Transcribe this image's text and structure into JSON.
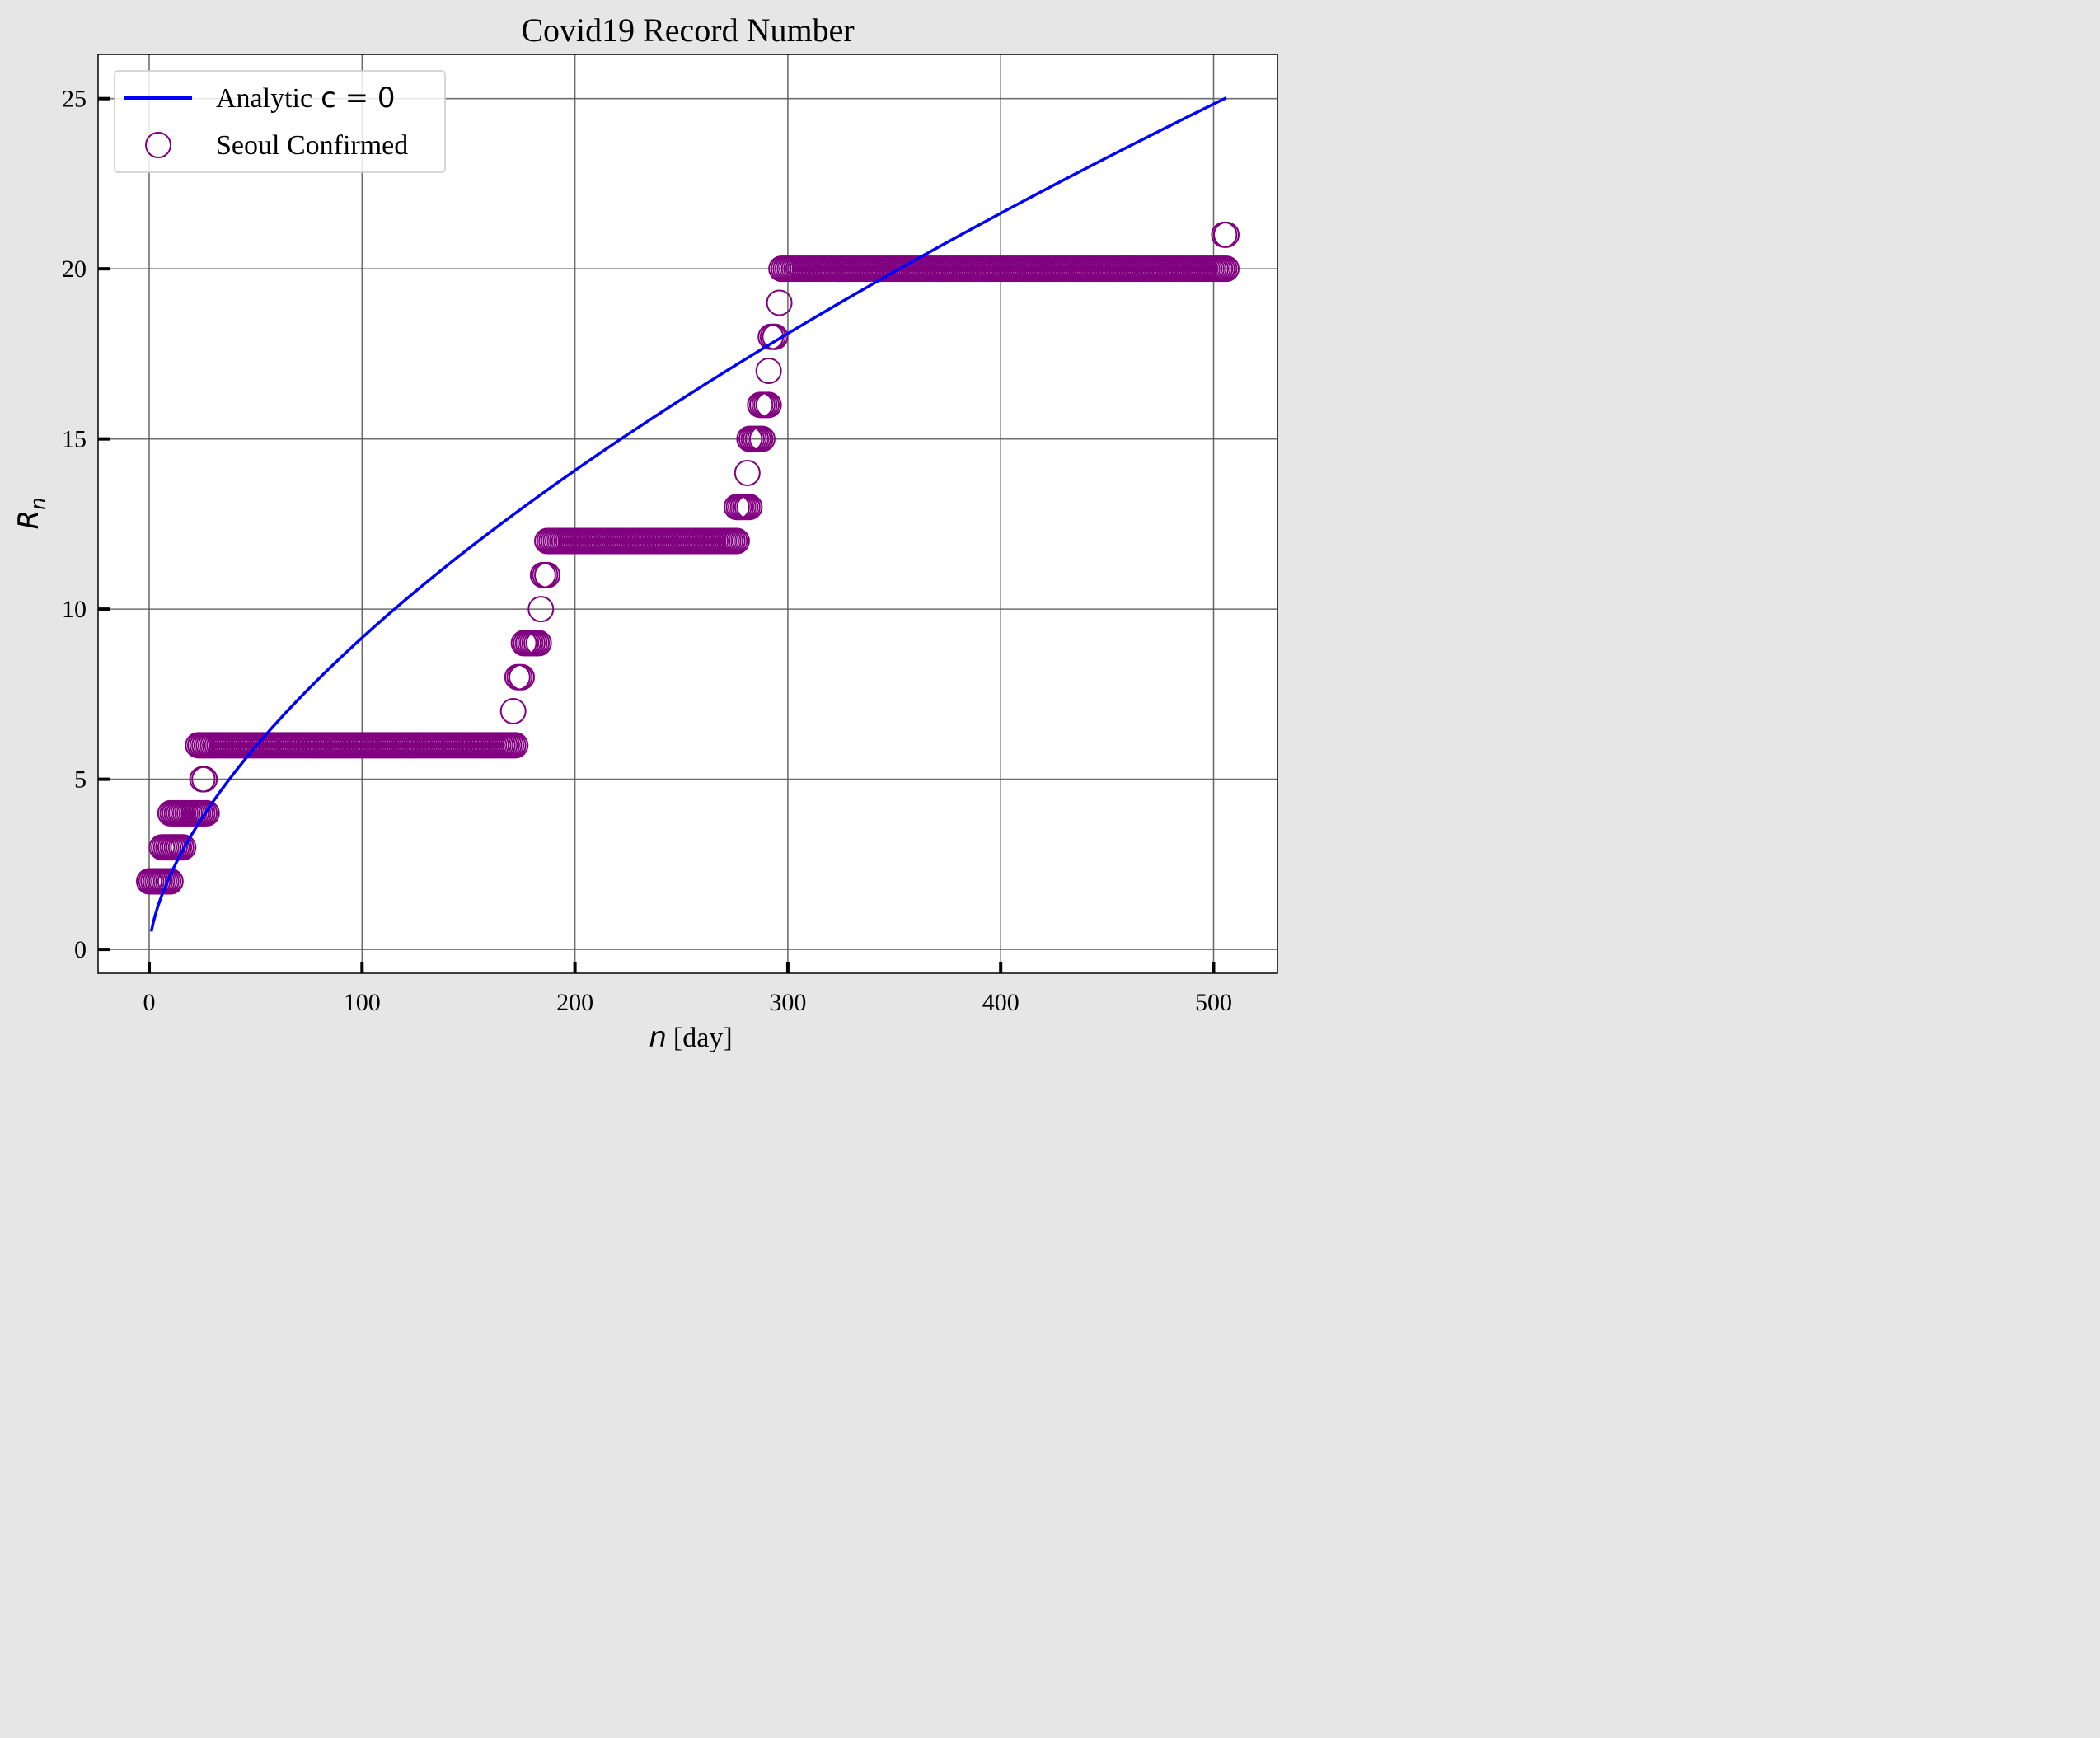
{
  "chart_data": {
    "type": "scatter",
    "title": "Covid19 Record Number",
    "xlabel": {
      "var": "n",
      "unit": "[day]"
    },
    "ylabel": {
      "var": "R",
      "sub": "n"
    },
    "xlim": [
      -24,
      530
    ],
    "ylim": [
      -0.7,
      26.3
    ],
    "xticks": [
      0,
      100,
      200,
      300,
      400,
      500
    ],
    "yticks": [
      0,
      5,
      10,
      15,
      20,
      25
    ],
    "grid": true,
    "legend_position": "top-left",
    "colors": {
      "line": "#0000ff",
      "markers": "#800080",
      "grid": "#555555"
    },
    "series": [
      {
        "name": "Analytic",
        "name_math": "c = 0",
        "kind": "line",
        "model": "R(n) = 0.527 * n^0.62",
        "x_range": [
          1,
          506
        ]
      },
      {
        "name": "Seoul Confirmed",
        "kind": "scatter-open-circle",
        "runs": [
          {
            "y": 2,
            "x": [
              0,
              10
            ]
          },
          {
            "y": 3,
            "x": [
              6,
              16
            ]
          },
          {
            "y": 4,
            "x": [
              10,
              27
            ]
          },
          {
            "y": 5,
            "x": [
              25,
              26
            ]
          },
          {
            "y": 6,
            "x": [
              23,
              172
            ]
          },
          {
            "y": 7,
            "x": [
              171,
              171
            ]
          },
          {
            "y": 8,
            "x": [
              173,
              175
            ]
          },
          {
            "y": 9,
            "x": [
              176,
              183
            ]
          },
          {
            "y": 10,
            "x": [
              184,
              184
            ]
          },
          {
            "y": 11,
            "x": [
              185,
              187
            ]
          },
          {
            "y": 12,
            "x": [
              187,
              276
            ]
          },
          {
            "y": 13,
            "x": [
              276,
              282
            ]
          },
          {
            "y": 14,
            "x": [
              281,
              281
            ]
          },
          {
            "y": 15,
            "x": [
              282,
              288
            ]
          },
          {
            "y": 16,
            "x": [
              287,
              291
            ]
          },
          {
            "y": 17,
            "x": [
              291,
              291
            ]
          },
          {
            "y": 18,
            "x": [
              292,
              294
            ]
          },
          {
            "y": 19,
            "x": [
              296,
              296
            ]
          },
          {
            "y": 20,
            "x": [
              297,
              506
            ]
          },
          {
            "y": 21,
            "x": [
              505,
              506
            ]
          }
        ]
      }
    ]
  }
}
